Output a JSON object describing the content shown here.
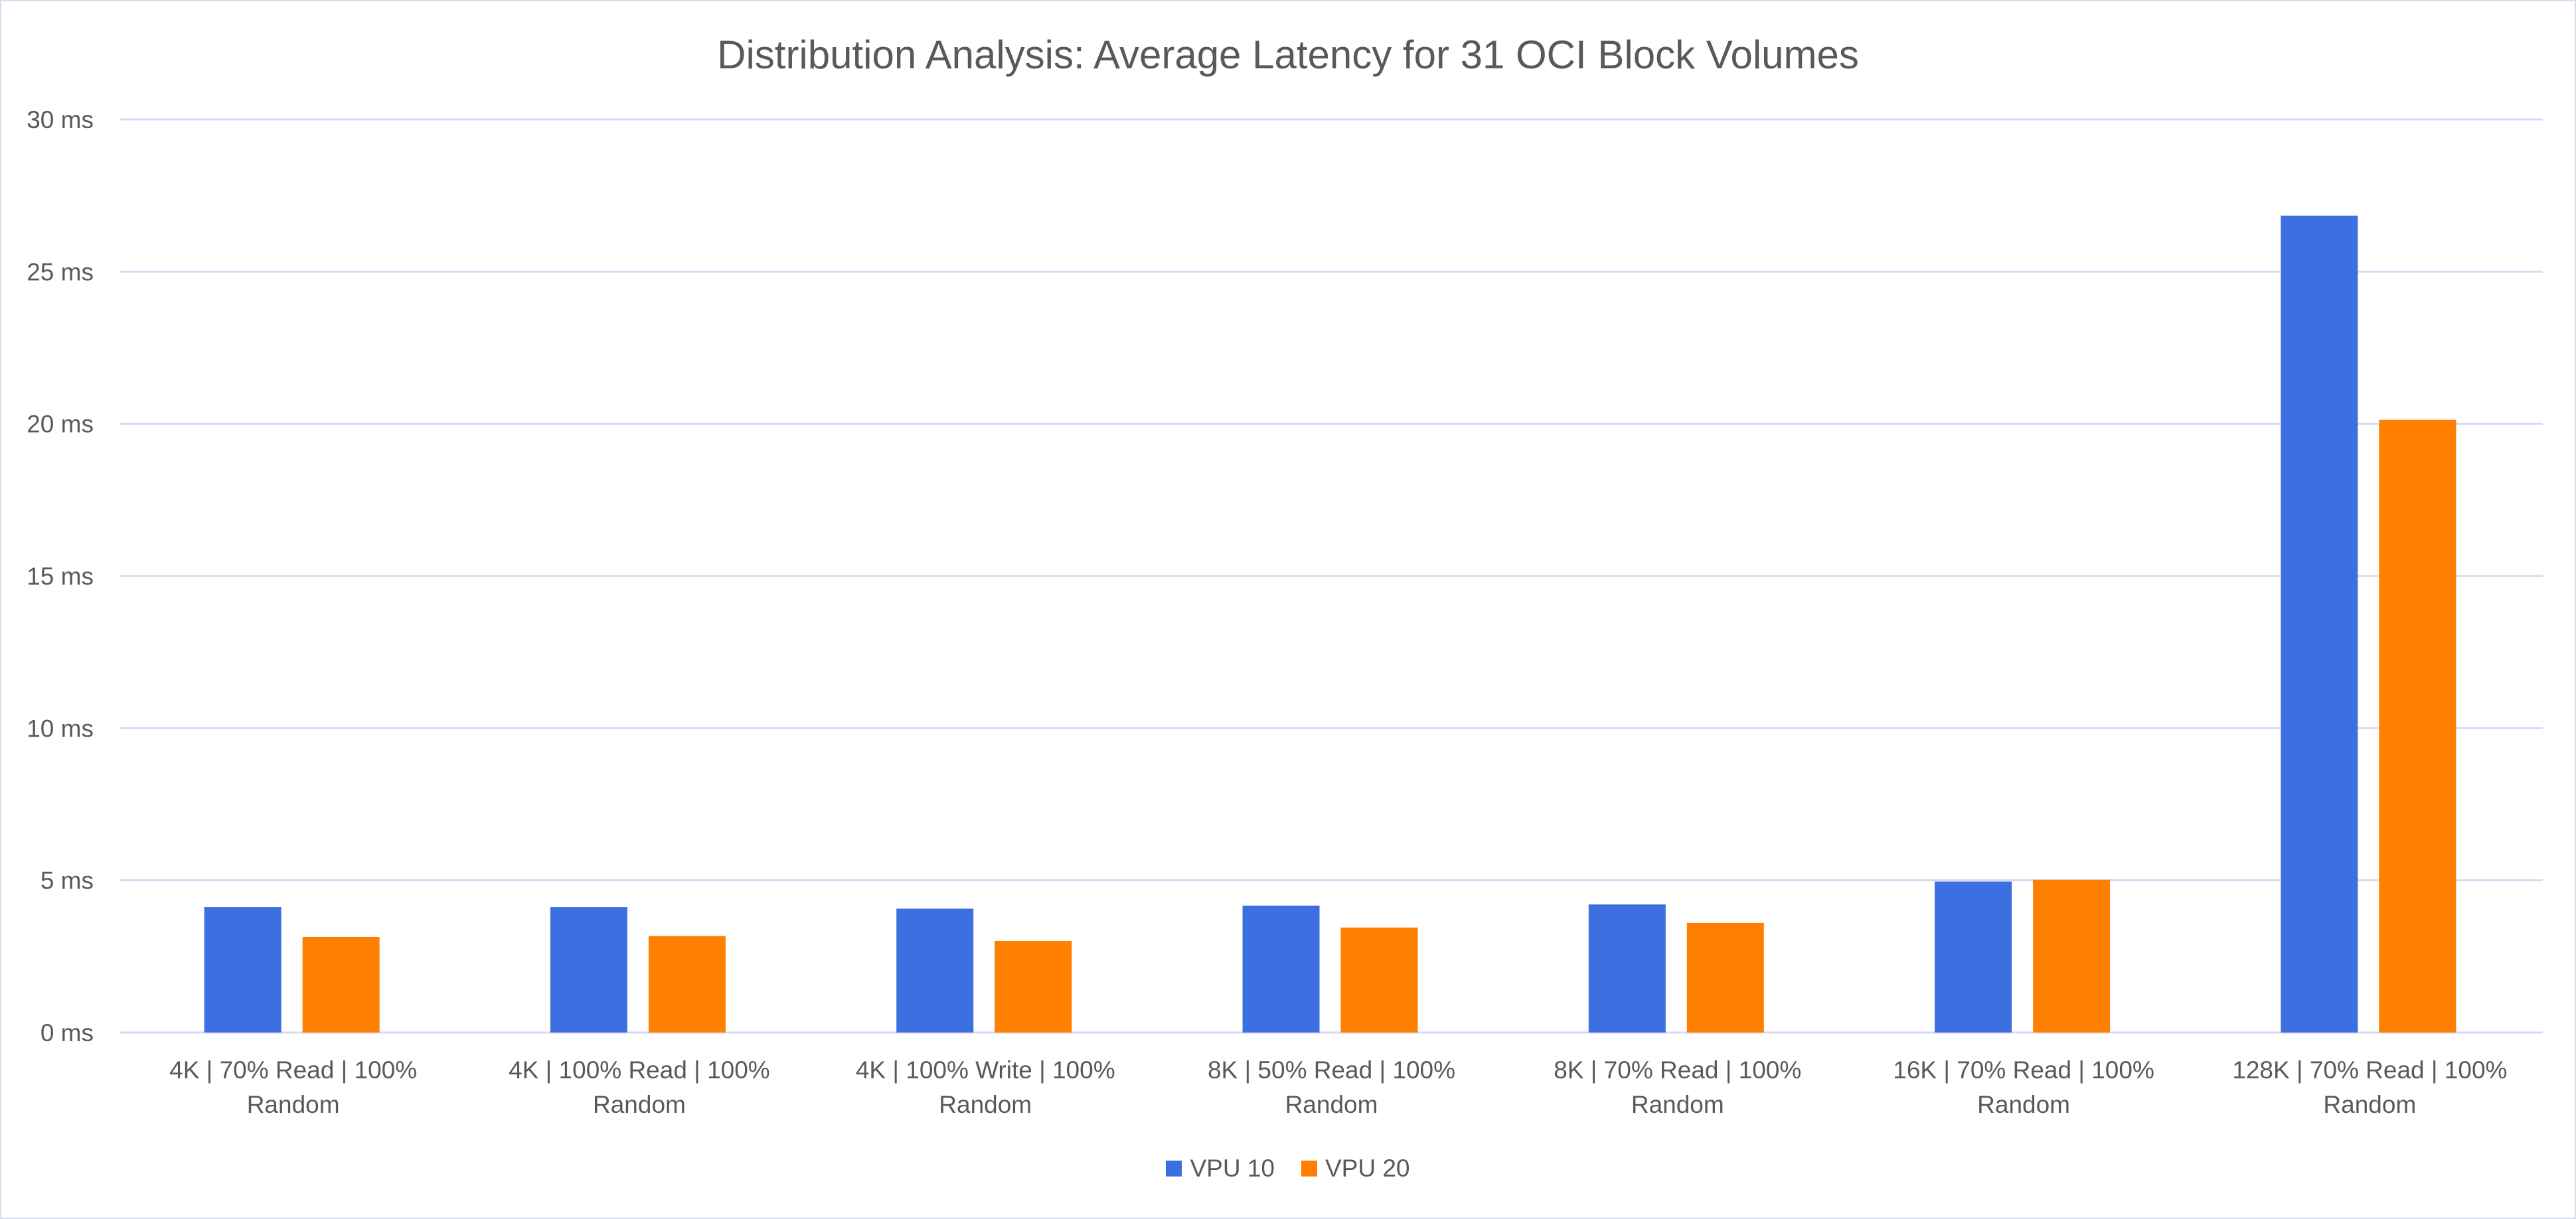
{
  "chart_data": {
    "type": "bar",
    "title": "Distribution Analysis: Average Latency for 31 OCI Block Volumes",
    "xlabel": "",
    "ylabel": "",
    "ylim": [
      0,
      30
    ],
    "yticks": [
      0,
      5,
      10,
      15,
      20,
      25,
      30
    ],
    "ytick_labels": [
      "0 ms",
      "5 ms",
      "10 ms",
      "15 ms",
      "20 ms",
      "25 ms",
      "30 ms"
    ],
    "grid": true,
    "legend_position": "bottom",
    "categories": [
      [
        "4K | 70% Read | 100%",
        "Random"
      ],
      [
        "4K | 100% Read | 100%",
        "Random"
      ],
      [
        "4K | 100% Write | 100%",
        "Random"
      ],
      [
        "8K | 50% Read | 100%",
        "Random"
      ],
      [
        "8K | 70% Read | 100%",
        "Random"
      ],
      [
        "16K | 70% Read | 100%",
        "Random"
      ],
      [
        "128K | 70% Read | 100%",
        "Random"
      ]
    ],
    "series": [
      {
        "name": "VPU 10",
        "color": "#3c70e0",
        "values": [
          4.12,
          4.12,
          4.07,
          4.17,
          4.21,
          4.96,
          26.84
        ]
      },
      {
        "name": "VPU 20",
        "color": "#ff7f00",
        "values": [
          3.14,
          3.17,
          3.01,
          3.45,
          3.6,
          5.02,
          20.13
        ]
      }
    ]
  }
}
